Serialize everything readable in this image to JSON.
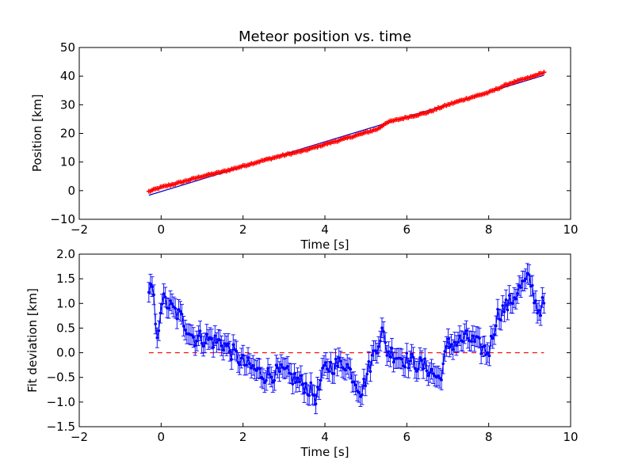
{
  "chart_data": [
    {
      "type": "scatter",
      "title": "Meteor position vs. time",
      "xlabel": "Time [s]",
      "ylabel": "Position [km]",
      "xlim": [
        -2,
        10
      ],
      "ylim": [
        -10,
        50
      ],
      "xticks": [
        "−2",
        "0",
        "2",
        "4",
        "6",
        "8",
        "10"
      ],
      "yticks": [
        "−10",
        "0",
        "10",
        "20",
        "30",
        "40",
        "50"
      ],
      "grid": false,
      "colors": {
        "observed": "#ff0000",
        "fit": "#0000cc",
        "axes": "#000000"
      },
      "fit_line": {
        "x": [
          -0.3,
          9.35
        ],
        "y": [
          -1.6,
          40.3
        ]
      },
      "observed_anchor_points": {
        "x": [
          -0.3,
          0.0,
          0.5,
          1.0,
          1.5,
          2.0,
          2.5,
          3.0,
          3.5,
          4.0,
          4.5,
          5.0,
          5.3,
          5.5,
          6.0,
          6.5,
          7.0,
          7.5,
          8.0,
          8.5,
          9.0,
          9.35
        ],
        "y": [
          -0.3,
          1.2,
          3.0,
          5.0,
          6.6,
          8.6,
          10.6,
          12.4,
          14.0,
          16.2,
          18.2,
          20.3,
          21.6,
          23.8,
          25.6,
          27.3,
          30.0,
          32.3,
          34.3,
          37.4,
          39.5,
          41.3
        ]
      }
    },
    {
      "type": "line",
      "xlabel": "Time [s]",
      "ylabel": "Fit deviation [km]",
      "xlim": [
        -2,
        10
      ],
      "ylim": [
        -1.5,
        2.0
      ],
      "xticks": [
        "−2",
        "0",
        "2",
        "4",
        "6",
        "8",
        "10"
      ],
      "yticks": [
        "−1.5",
        "−1.0",
        "−0.5",
        "0.0",
        "0.5",
        "1.0",
        "1.5",
        "2.0"
      ],
      "grid": false,
      "error_bar_halfwidth": 0.2,
      "reference_line": {
        "y": 0.0,
        "x": [
          -0.3,
          9.35
        ],
        "style": "dashed"
      },
      "colors": {
        "deviation": "#0000ff",
        "reference": "#ff0000",
        "axes": "#000000"
      },
      "deviation_anchor_points": {
        "x": [
          -0.3,
          -0.2,
          -0.1,
          0.0,
          0.2,
          0.5,
          0.8,
          1.0,
          1.5,
          2.0,
          2.5,
          3.0,
          3.5,
          3.8,
          4.0,
          4.5,
          4.9,
          5.0,
          5.2,
          5.4,
          5.5,
          6.0,
          6.5,
          6.8,
          7.0,
          7.5,
          8.0,
          8.2,
          8.5,
          8.8,
          9.0,
          9.2,
          9.35
        ],
        "y": [
          1.3,
          1.25,
          0.15,
          1.1,
          0.95,
          0.7,
          0.3,
          0.3,
          0.2,
          -0.2,
          -0.45,
          -0.4,
          -0.65,
          -0.9,
          -0.3,
          -0.2,
          -0.8,
          -0.5,
          0.0,
          0.45,
          0.05,
          -0.15,
          -0.3,
          -0.55,
          0.15,
          0.3,
          0.0,
          0.75,
          1.0,
          1.35,
          1.5,
          0.85,
          1.0
        ]
      }
    }
  ]
}
